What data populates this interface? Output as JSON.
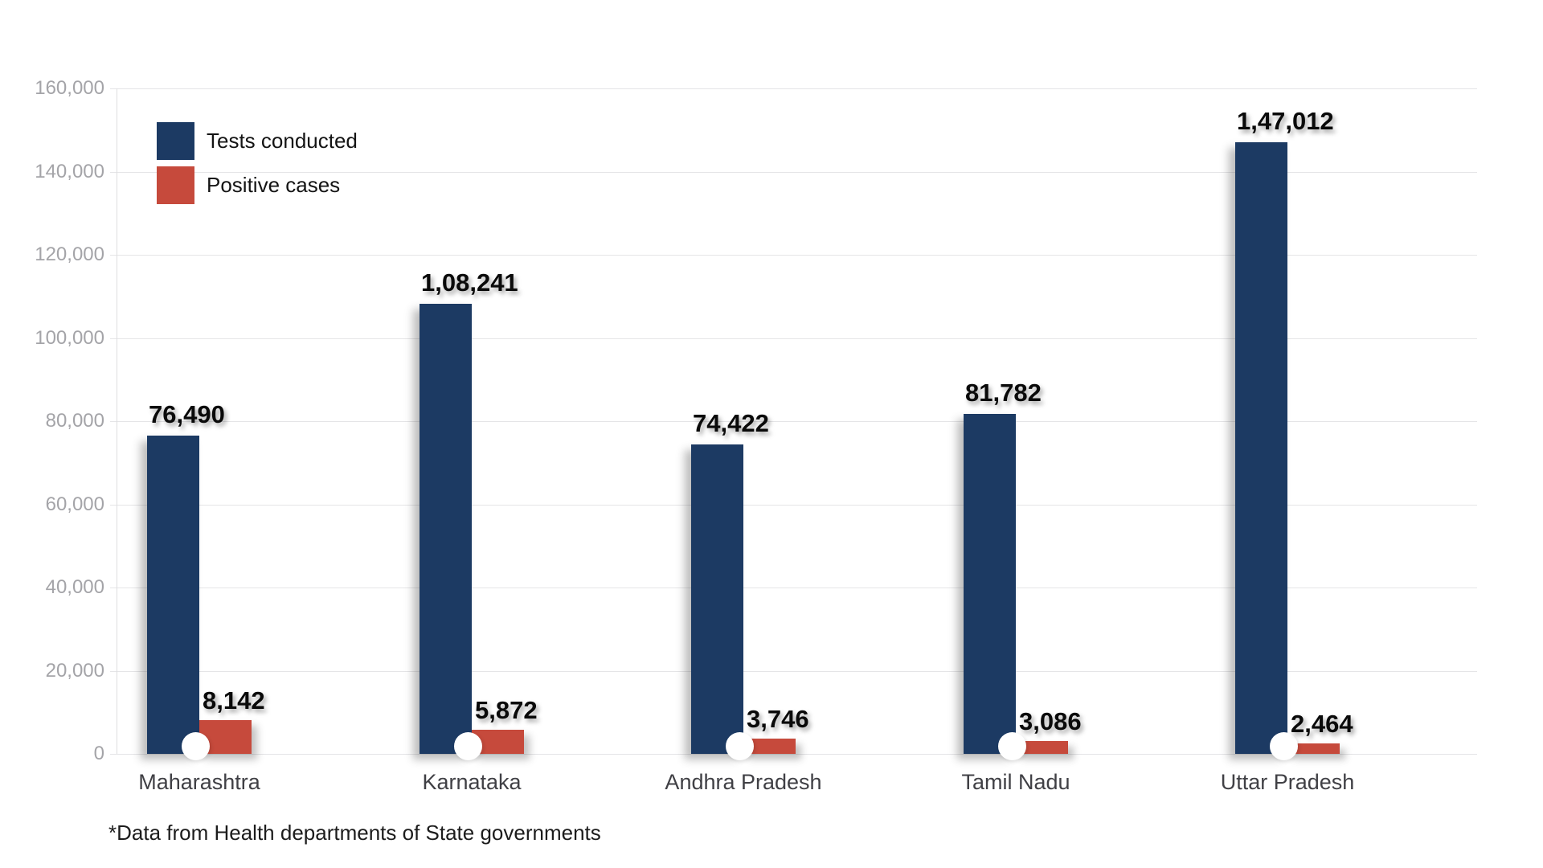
{
  "chart_data": {
    "type": "bar",
    "title": "",
    "categories": [
      "Maharashtra",
      "Karnataka",
      "Andhra Pradesh",
      "Tamil Nadu",
      "Uttar Pradesh"
    ],
    "series": [
      {
        "name": "Tests conducted",
        "color": "#1C3A63",
        "values": [
          76490,
          108241,
          74422,
          81782,
          147012
        ],
        "value_labels": [
          "76,490",
          "1,08,241",
          "74,422",
          "81,782",
          "1,47,012"
        ]
      },
      {
        "name": "Positive cases",
        "color": "#C64A3C",
        "values": [
          8142,
          5872,
          3746,
          3086,
          2464
        ],
        "value_labels": [
          "8,142",
          "5,872",
          "3,746",
          "3,086",
          "2,464"
        ]
      }
    ],
    "y_axis": {
      "min": 0,
      "max": 160000,
      "step": 20000,
      "tick_labels": [
        "0",
        "20,000",
        "40,000",
        "60,000",
        "80,000",
        "100,000",
        "120,000",
        "140,000",
        "160,000"
      ]
    },
    "grid": true,
    "legend_position": "top-left",
    "footnote": "*Data from Health departments of State governments",
    "marker": "white-dot-at-bar-junction"
  },
  "colors": {
    "background": "#ffffff",
    "gridline": "#e5e5e7",
    "tick_text": "#a4a4a8",
    "category_text": "#404045",
    "value_text": "#0a0a0a"
  }
}
